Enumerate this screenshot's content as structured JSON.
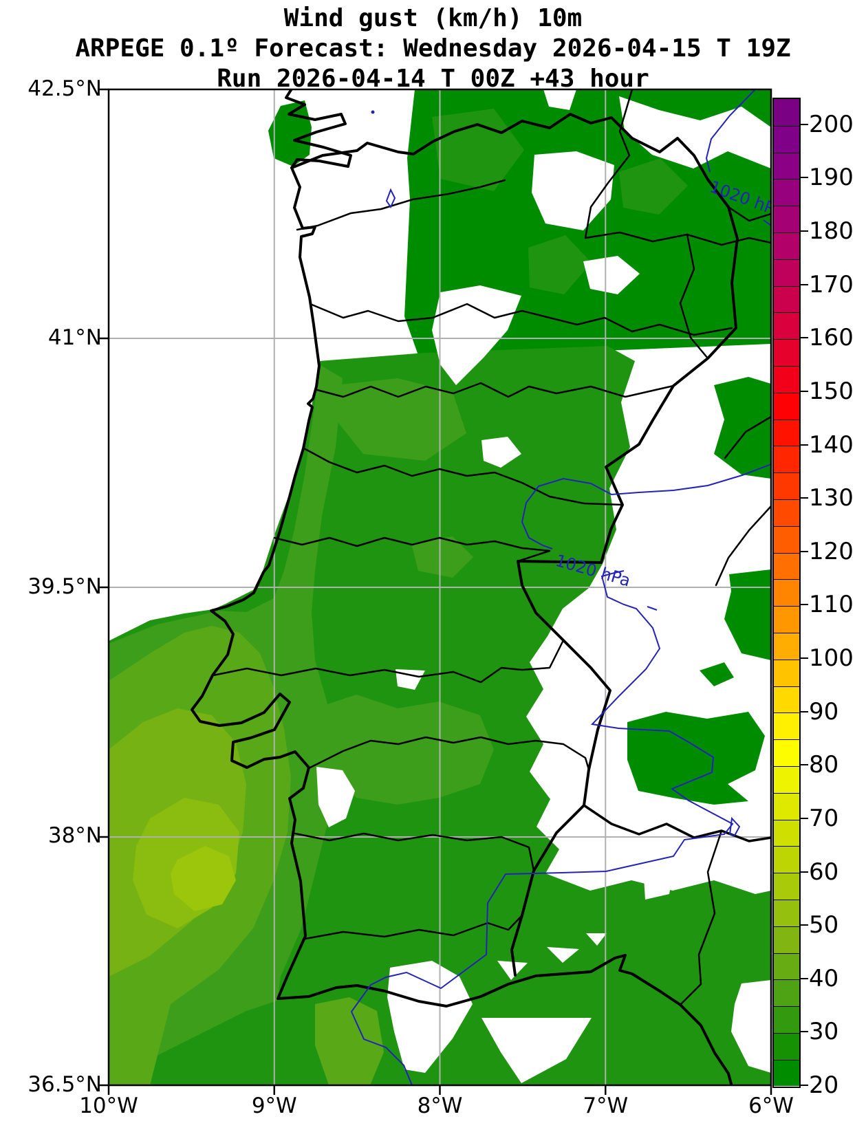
{
  "title": {
    "line1": "Wind gust (km/h) 10m",
    "line2": "ARPEGE 0.1º Forecast: Wednesday 2026-04-15 T 19Z",
    "line3": "Run 2026-04-14 T 00Z +43 hour"
  },
  "model": "ARPEGE 0.1º",
  "variable": "Wind gust (km/h) 10m",
  "valid_time": "Wednesday 2026-04-15 T 19Z",
  "run_time": "2026-04-14 T 00Z",
  "lead_hour": "+43 hour",
  "axes": {
    "lat_labels": [
      {
        "text": "42.5°N",
        "lat": 42.5
      },
      {
        "text": "41°N",
        "lat": 41.0
      },
      {
        "text": "39.5°N",
        "lat": 39.5
      },
      {
        "text": "38°N",
        "lat": 38.0
      },
      {
        "text": "36.5°N",
        "lat": 36.5
      }
    ],
    "lon_labels": [
      {
        "text": "10°W",
        "lon": -10
      },
      {
        "text": "9°W",
        "lon": -9
      },
      {
        "text": "8°W",
        "lon": -8
      },
      {
        "text": "7°W",
        "lon": -7
      },
      {
        "text": "6°W",
        "lon": -6
      }
    ],
    "grid_lats": [
      41.0,
      39.5,
      38.0
    ],
    "grid_lons": [
      -9,
      -8,
      -7
    ]
  },
  "colorbar": {
    "unit": "km/h",
    "min": 20,
    "max": 205,
    "segment_step": 5,
    "tick_values": [
      20,
      30,
      40,
      50,
      60,
      70,
      80,
      90,
      100,
      110,
      120,
      130,
      140,
      150,
      160,
      170,
      180,
      190,
      200
    ],
    "segments_bottom_to_top": [
      {
        "from": 20,
        "color": "#008c00"
      },
      {
        "from": 25,
        "color": "#169104"
      },
      {
        "from": 30,
        "color": "#33990e"
      },
      {
        "from": 35,
        "color": "#4da313"
      },
      {
        "from": 40,
        "color": "#68ac14"
      },
      {
        "from": 45,
        "color": "#80b512"
      },
      {
        "from": 50,
        "color": "#95c00e"
      },
      {
        "from": 55,
        "color": "#a9ca08"
      },
      {
        "from": 60,
        "color": "#bcd503"
      },
      {
        "from": 65,
        "color": "#cfdf00"
      },
      {
        "from": 70,
        "color": "#dfe900"
      },
      {
        "from": 75,
        "color": "#eef300"
      },
      {
        "from": 80,
        "color": "#fdfd00"
      },
      {
        "from": 85,
        "color": "#ffef00"
      },
      {
        "from": 90,
        "color": "#ffd900"
      },
      {
        "from": 95,
        "color": "#ffc300"
      },
      {
        "from": 100,
        "color": "#ffad00"
      },
      {
        "from": 105,
        "color": "#ff9800"
      },
      {
        "from": 110,
        "color": "#ff8400"
      },
      {
        "from": 115,
        "color": "#ff7000"
      },
      {
        "from": 120,
        "color": "#ff5d00"
      },
      {
        "from": 125,
        "color": "#ff4a00"
      },
      {
        "from": 130,
        "color": "#ff3800"
      },
      {
        "from": 135,
        "color": "#ff2600"
      },
      {
        "from": 140,
        "color": "#ff1300"
      },
      {
        "from": 145,
        "color": "#fe0105"
      },
      {
        "from": 150,
        "color": "#f20019"
      },
      {
        "from": 155,
        "color": "#e6012c"
      },
      {
        "from": 160,
        "color": "#d9013d"
      },
      {
        "from": 165,
        "color": "#cc014d"
      },
      {
        "from": 170,
        "color": "#bf015c"
      },
      {
        "from": 175,
        "color": "#b20169"
      },
      {
        "from": 180,
        "color": "#a40174"
      },
      {
        "from": 185,
        "color": "#97017e"
      },
      {
        "from": 190,
        "color": "#8a0185"
      },
      {
        "from": 195,
        "color": "#7e0187"
      },
      {
        "from": 200,
        "color": "#7a0183"
      }
    ]
  },
  "isobars": {
    "pressure_hpa": 1020,
    "label_main": "1020 hPa",
    "label_clipped": "1020 hP"
  },
  "map_palette": {
    "g20": "#008c00",
    "g25": "#1f9410",
    "g30": "#3d9e1b",
    "g35": "#58a818",
    "g40": "#77b214",
    "g45": "#8bbc10",
    "g50": "#9cc60c",
    "white": "#ffffff",
    "line": "#000000",
    "grid": "#b0b0b0",
    "isobar": "#2323b8"
  },
  "depicted_gust_range_kmh": [
    20,
    55
  ]
}
